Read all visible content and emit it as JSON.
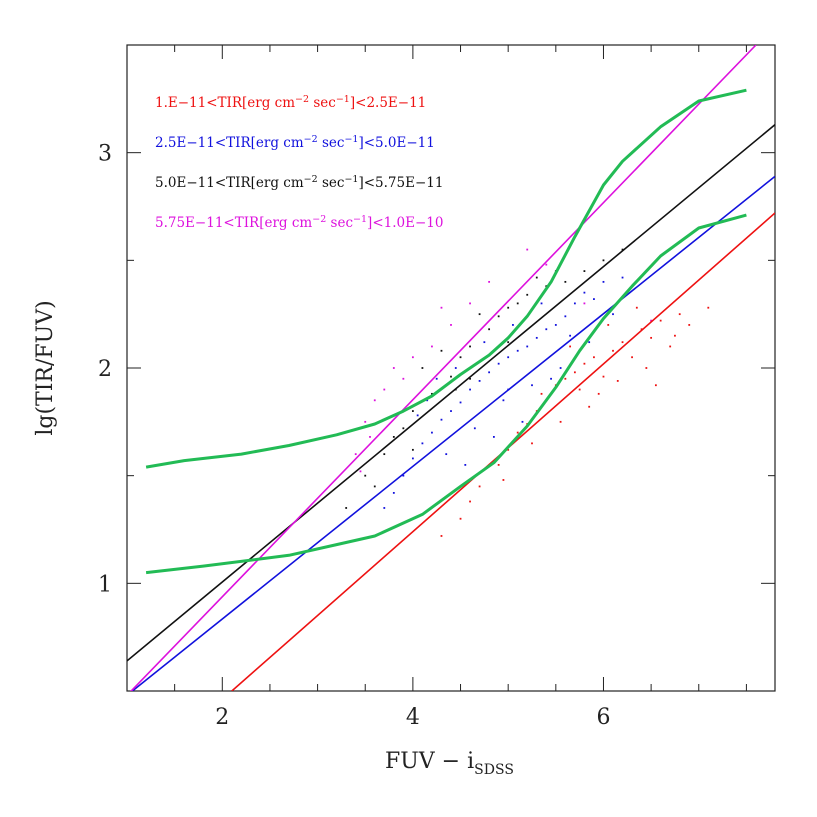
{
  "chart_data": {
    "type": "scatter",
    "title": "",
    "xlabel": "FUV − i",
    "xlabel_sub": "SDSS",
    "ylabel": "lg(TIR/FUV)",
    "xlim": [
      1.0,
      7.8
    ],
    "ylim": [
      0.5,
      3.5
    ],
    "x_ticks": [
      2,
      4,
      6
    ],
    "y_ticks": [
      1,
      2,
      3
    ],
    "x_ticks_text": [
      "2",
      "4",
      "6"
    ],
    "y_ticks_text": [
      "1",
      "2",
      "3"
    ],
    "grid": false,
    "legend_placement": "top-left",
    "legend": [
      {
        "text": "1.E−11<TIR[erg cm−2 sec−1]<2.5E−11",
        "pre": "1.E−11<TIR[erg cm",
        "sup1": "−2",
        "mid": " sec",
        "sup2": "−1",
        "post": "]<2.5E−11",
        "color": "#ee1111"
      },
      {
        "text": "2.5E−11<TIR[erg cm−2 sec−1]<5.0E−11",
        "pre": "2.5E−11<TIR[erg cm",
        "sup1": "−2",
        "mid": " sec",
        "sup2": "−1",
        "post": "]<5.0E−11",
        "color": "#1111dd"
      },
      {
        "text": "5.0E−11<TIR[erg cm−2 sec−1]<5.75E−11",
        "pre": "5.0E−11<TIR[erg cm",
        "sup1": "−2",
        "mid": " sec",
        "sup2": "−1",
        "post": "]<5.75E−11",
        "color": "#111111"
      },
      {
        "text": "5.75E−11<TIR[erg cm−2 sec−1]<1.0E−10",
        "pre": "5.75E−11<TIR[erg cm",
        "sup1": "−2",
        "mid": " sec",
        "sup2": "−1",
        "post": "]<1.0E−10",
        "color": "#dd11dd"
      }
    ],
    "fit_lines": [
      {
        "color": "#ee1111",
        "points": [
          [
            2.1,
            0.5
          ],
          [
            7.8,
            2.72
          ]
        ]
      },
      {
        "color": "#1111dd",
        "points": [
          [
            1.0,
            0.48
          ],
          [
            7.8,
            2.89
          ]
        ]
      },
      {
        "color": "#111111",
        "points": [
          [
            1.0,
            0.64
          ],
          [
            7.8,
            3.13
          ]
        ]
      },
      {
        "color": "#dd11dd",
        "points": [
          [
            1.0,
            0.48
          ],
          [
            7.6,
            3.5
          ]
        ]
      }
    ],
    "model_curves": [
      {
        "color": "#22bb55",
        "points": [
          [
            1.2,
            1.54
          ],
          [
            1.6,
            1.57
          ],
          [
            2.2,
            1.6
          ],
          [
            2.7,
            1.64
          ],
          [
            3.2,
            1.69
          ],
          [
            3.6,
            1.74
          ],
          [
            3.9,
            1.8
          ],
          [
            4.2,
            1.87
          ],
          [
            4.5,
            1.97
          ],
          [
            4.8,
            2.06
          ],
          [
            5.0,
            2.14
          ],
          [
            5.2,
            2.24
          ],
          [
            5.45,
            2.4
          ],
          [
            5.7,
            2.61
          ],
          [
            6.0,
            2.85
          ],
          [
            6.2,
            2.96
          ],
          [
            6.6,
            3.12
          ],
          [
            7.0,
            3.24
          ],
          [
            7.5,
            3.29
          ]
        ]
      },
      {
        "color": "#22bb55",
        "points": [
          [
            1.2,
            1.05
          ],
          [
            1.8,
            1.08
          ],
          [
            2.7,
            1.13
          ],
          [
            3.2,
            1.18
          ],
          [
            3.6,
            1.22
          ],
          [
            4.1,
            1.32
          ],
          [
            4.5,
            1.45
          ],
          [
            4.85,
            1.56
          ],
          [
            5.2,
            1.73
          ],
          [
            5.5,
            1.91
          ],
          [
            5.75,
            2.08
          ],
          [
            6.0,
            2.23
          ],
          [
            6.3,
            2.38
          ],
          [
            6.6,
            2.52
          ],
          [
            7.0,
            2.65
          ],
          [
            7.5,
            2.71
          ]
        ]
      }
    ],
    "series": [
      {
        "color": "#ee1111",
        "points": [
          [
            4.3,
            1.22
          ],
          [
            4.5,
            1.3
          ],
          [
            4.7,
            1.45
          ],
          [
            4.9,
            1.55
          ],
          [
            5.0,
            1.62
          ],
          [
            5.1,
            1.7
          ],
          [
            5.2,
            1.74
          ],
          [
            5.3,
            1.8
          ],
          [
            5.35,
            1.88
          ],
          [
            5.4,
            1.85
          ],
          [
            5.5,
            1.92
          ],
          [
            5.6,
            1.95
          ],
          [
            5.7,
            1.98
          ],
          [
            5.75,
            1.9
          ],
          [
            5.8,
            2.02
          ],
          [
            5.9,
            2.05
          ],
          [
            6.0,
            1.96
          ],
          [
            6.1,
            2.08
          ],
          [
            6.2,
            2.12
          ],
          [
            6.3,
            2.05
          ],
          [
            6.4,
            2.18
          ],
          [
            6.5,
            2.14
          ],
          [
            6.6,
            2.22
          ],
          [
            6.7,
            2.1
          ],
          [
            6.8,
            2.25
          ],
          [
            6.9,
            2.2
          ],
          [
            7.1,
            2.28
          ],
          [
            5.55,
            1.75
          ],
          [
            5.85,
            1.82
          ],
          [
            6.15,
            1.94
          ],
          [
            6.45,
            2.0
          ],
          [
            5.25,
            1.65
          ],
          [
            4.95,
            1.48
          ],
          [
            6.05,
            2.2
          ],
          [
            6.35,
            2.28
          ],
          [
            5.65,
            2.1
          ],
          [
            6.55,
            1.92
          ],
          [
            4.6,
            1.38
          ],
          [
            6.75,
            2.15
          ],
          [
            5.95,
            1.88
          ]
        ]
      },
      {
        "color": "#1111dd",
        "points": [
          [
            3.7,
            1.35
          ],
          [
            3.9,
            1.5
          ],
          [
            4.0,
            1.58
          ],
          [
            4.1,
            1.65
          ],
          [
            4.2,
            1.7
          ],
          [
            4.3,
            1.76
          ],
          [
            4.4,
            1.8
          ],
          [
            4.5,
            1.84
          ],
          [
            4.6,
            1.9
          ],
          [
            4.7,
            1.94
          ],
          [
            4.8,
            1.98
          ],
          [
            4.9,
            2.02
          ],
          [
            5.0,
            2.05
          ],
          [
            5.1,
            2.08
          ],
          [
            5.2,
            2.1
          ],
          [
            5.3,
            2.14
          ],
          [
            5.4,
            2.18
          ],
          [
            5.5,
            2.2
          ],
          [
            5.6,
            2.24
          ],
          [
            5.7,
            2.3
          ],
          [
            5.8,
            2.35
          ],
          [
            5.9,
            2.32
          ],
          [
            6.0,
            2.4
          ],
          [
            6.2,
            2.42
          ],
          [
            4.35,
            1.6
          ],
          [
            4.65,
            1.72
          ],
          [
            4.95,
            1.85
          ],
          [
            5.25,
            1.92
          ],
          [
            5.55,
            2.0
          ],
          [
            5.85,
            2.12
          ],
          [
            4.15,
            1.85
          ],
          [
            4.45,
            2.0
          ],
          [
            4.75,
            2.12
          ],
          [
            5.05,
            2.2
          ],
          [
            5.35,
            2.3
          ],
          [
            3.8,
            1.42
          ],
          [
            4.05,
            1.78
          ],
          [
            5.15,
            1.75
          ],
          [
            5.45,
            1.95
          ],
          [
            6.1,
            2.25
          ],
          [
            4.55,
            1.55
          ],
          [
            4.85,
            1.68
          ],
          [
            5.65,
            2.15
          ],
          [
            5.0,
            1.9
          ],
          [
            4.25,
            1.95
          ]
        ]
      },
      {
        "color": "#111111",
        "points": [
          [
            3.3,
            1.35
          ],
          [
            3.5,
            1.5
          ],
          [
            3.7,
            1.6
          ],
          [
            3.9,
            1.72
          ],
          [
            4.0,
            1.8
          ],
          [
            4.2,
            1.88
          ],
          [
            4.4,
            1.96
          ],
          [
            4.5,
            2.05
          ],
          [
            4.6,
            2.1
          ],
          [
            4.8,
            2.18
          ],
          [
            4.9,
            2.24
          ],
          [
            5.0,
            2.28
          ],
          [
            5.1,
            2.3
          ],
          [
            5.2,
            2.34
          ],
          [
            5.4,
            2.38
          ],
          [
            5.6,
            2.4
          ],
          [
            5.8,
            2.45
          ],
          [
            6.0,
            2.5
          ],
          [
            6.2,
            2.55
          ],
          [
            3.6,
            1.45
          ],
          [
            4.1,
            2.0
          ],
          [
            4.3,
            2.08
          ],
          [
            4.7,
            2.25
          ],
          [
            5.3,
            2.42
          ],
          [
            5.5,
            2.45
          ],
          [
            4.0,
            1.62
          ],
          [
            4.6,
            1.95
          ],
          [
            5.0,
            2.12
          ],
          [
            3.8,
            1.68
          ],
          [
            4.45,
            1.9
          ]
        ]
      },
      {
        "color": "#dd11dd",
        "points": [
          [
            3.4,
            1.6
          ],
          [
            3.5,
            1.75
          ],
          [
            3.6,
            1.85
          ],
          [
            3.7,
            1.9
          ],
          [
            3.8,
            2.0
          ],
          [
            4.2,
            2.1
          ],
          [
            4.4,
            2.2
          ],
          [
            4.6,
            2.3
          ],
          [
            5.2,
            2.55
          ],
          [
            5.4,
            2.48
          ],
          [
            3.9,
            1.95
          ],
          [
            4.0,
            2.05
          ],
          [
            3.55,
            1.68
          ],
          [
            4.3,
            2.28
          ],
          [
            4.8,
            2.4
          ],
          [
            5.8,
            2.3
          ],
          [
            6.5,
            2.22
          ],
          [
            3.45,
            1.52
          ]
        ]
      }
    ]
  }
}
